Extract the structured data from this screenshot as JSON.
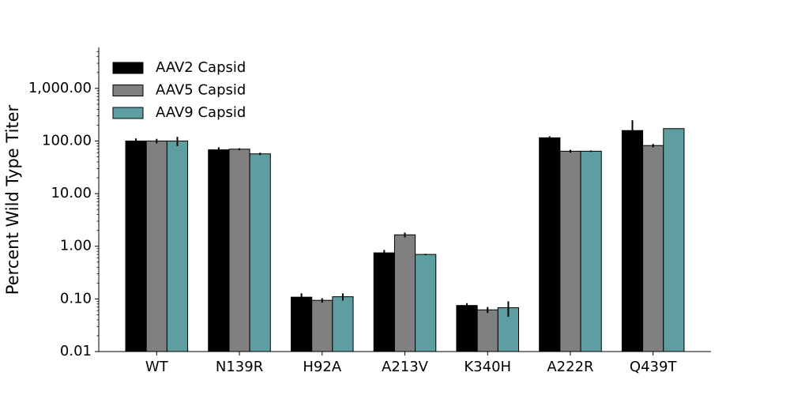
{
  "chart_data": {
    "type": "bar",
    "title": "",
    "xlabel": "",
    "ylabel": "Percent Wild Type Titer",
    "yscale": "log",
    "ylim": [
      0.01,
      6000
    ],
    "grid": false,
    "legend_position": "top-left",
    "categories": [
      "WT",
      "N139R",
      "H92A",
      "A213V",
      "K340H",
      "A222R",
      "Q439T"
    ],
    "y_ticks": [
      0.01,
      0.1,
      1,
      10,
      100,
      1000
    ],
    "y_tick_labels": [
      "0.01",
      "0.10",
      "1.00",
      "10.00",
      "100.00",
      "1,000.00"
    ],
    "series": [
      {
        "name": "AAV2 Capsid",
        "color": "#000000",
        "values": [
          100,
          68,
          0.108,
          0.75,
          0.075,
          115,
          158
        ],
        "errors": [
          12,
          8,
          0.02,
          0.1,
          0.008,
          8,
          90
        ]
      },
      {
        "name": "AAV5 Capsid",
        "color": "#808080",
        "values": [
          100,
          70,
          0.094,
          1.65,
          0.062,
          64,
          82
        ],
        "errors": [
          10,
          3,
          0.009,
          0.17,
          0.008,
          4,
          6
        ]
      },
      {
        "name": "AAV9 Capsid",
        "color": "#5f9ea0",
        "values": [
          100,
          57,
          0.11,
          0.7,
          0.068,
          64,
          172
        ],
        "errors": [
          20,
          3,
          0.017,
          0.02,
          0.022,
          2,
          0
        ]
      }
    ]
  }
}
